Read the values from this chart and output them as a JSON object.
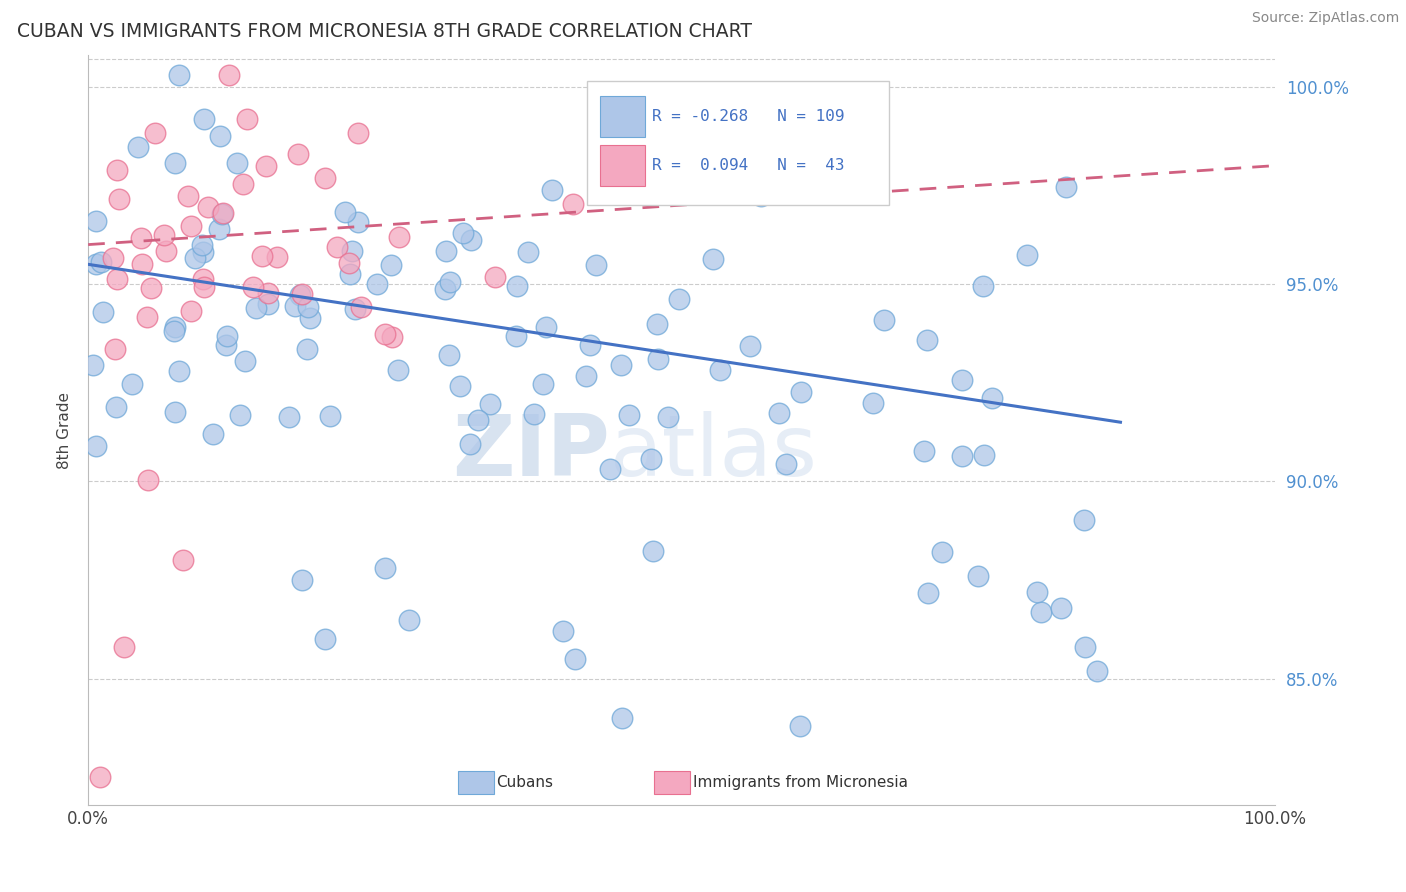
{
  "title": "CUBAN VS IMMIGRANTS FROM MICRONESIA 8TH GRADE CORRELATION CHART",
  "source": "Source: ZipAtlas.com",
  "ylabel": "8th Grade",
  "xlim": [
    0.0,
    1.0
  ],
  "ylim": [
    0.818,
    1.008
  ],
  "y_ticks": [
    0.85,
    0.9,
    0.95,
    1.0
  ],
  "y_tick_labels": [
    "85.0%",
    "90.0%",
    "95.0%",
    "100.0%"
  ],
  "legend_blue_R": "-0.268",
  "legend_blue_N": "109",
  "legend_pink_R": "0.094",
  "legend_pink_N": "43",
  "blue_color": "#aec6e8",
  "pink_color": "#f4a8c0",
  "blue_edge": "#6fa8d8",
  "pink_edge": "#e87090",
  "trend_blue": "#4472c4",
  "trend_pink": "#d06080",
  "watermark_zip": "ZIP",
  "watermark_atlas": "atlas",
  "blue_trend_x": [
    0.0,
    0.87
  ],
  "blue_trend_y": [
    0.955,
    0.915
  ],
  "pink_trend_x": [
    0.0,
    1.0
  ],
  "pink_trend_y": [
    0.96,
    0.98
  ]
}
